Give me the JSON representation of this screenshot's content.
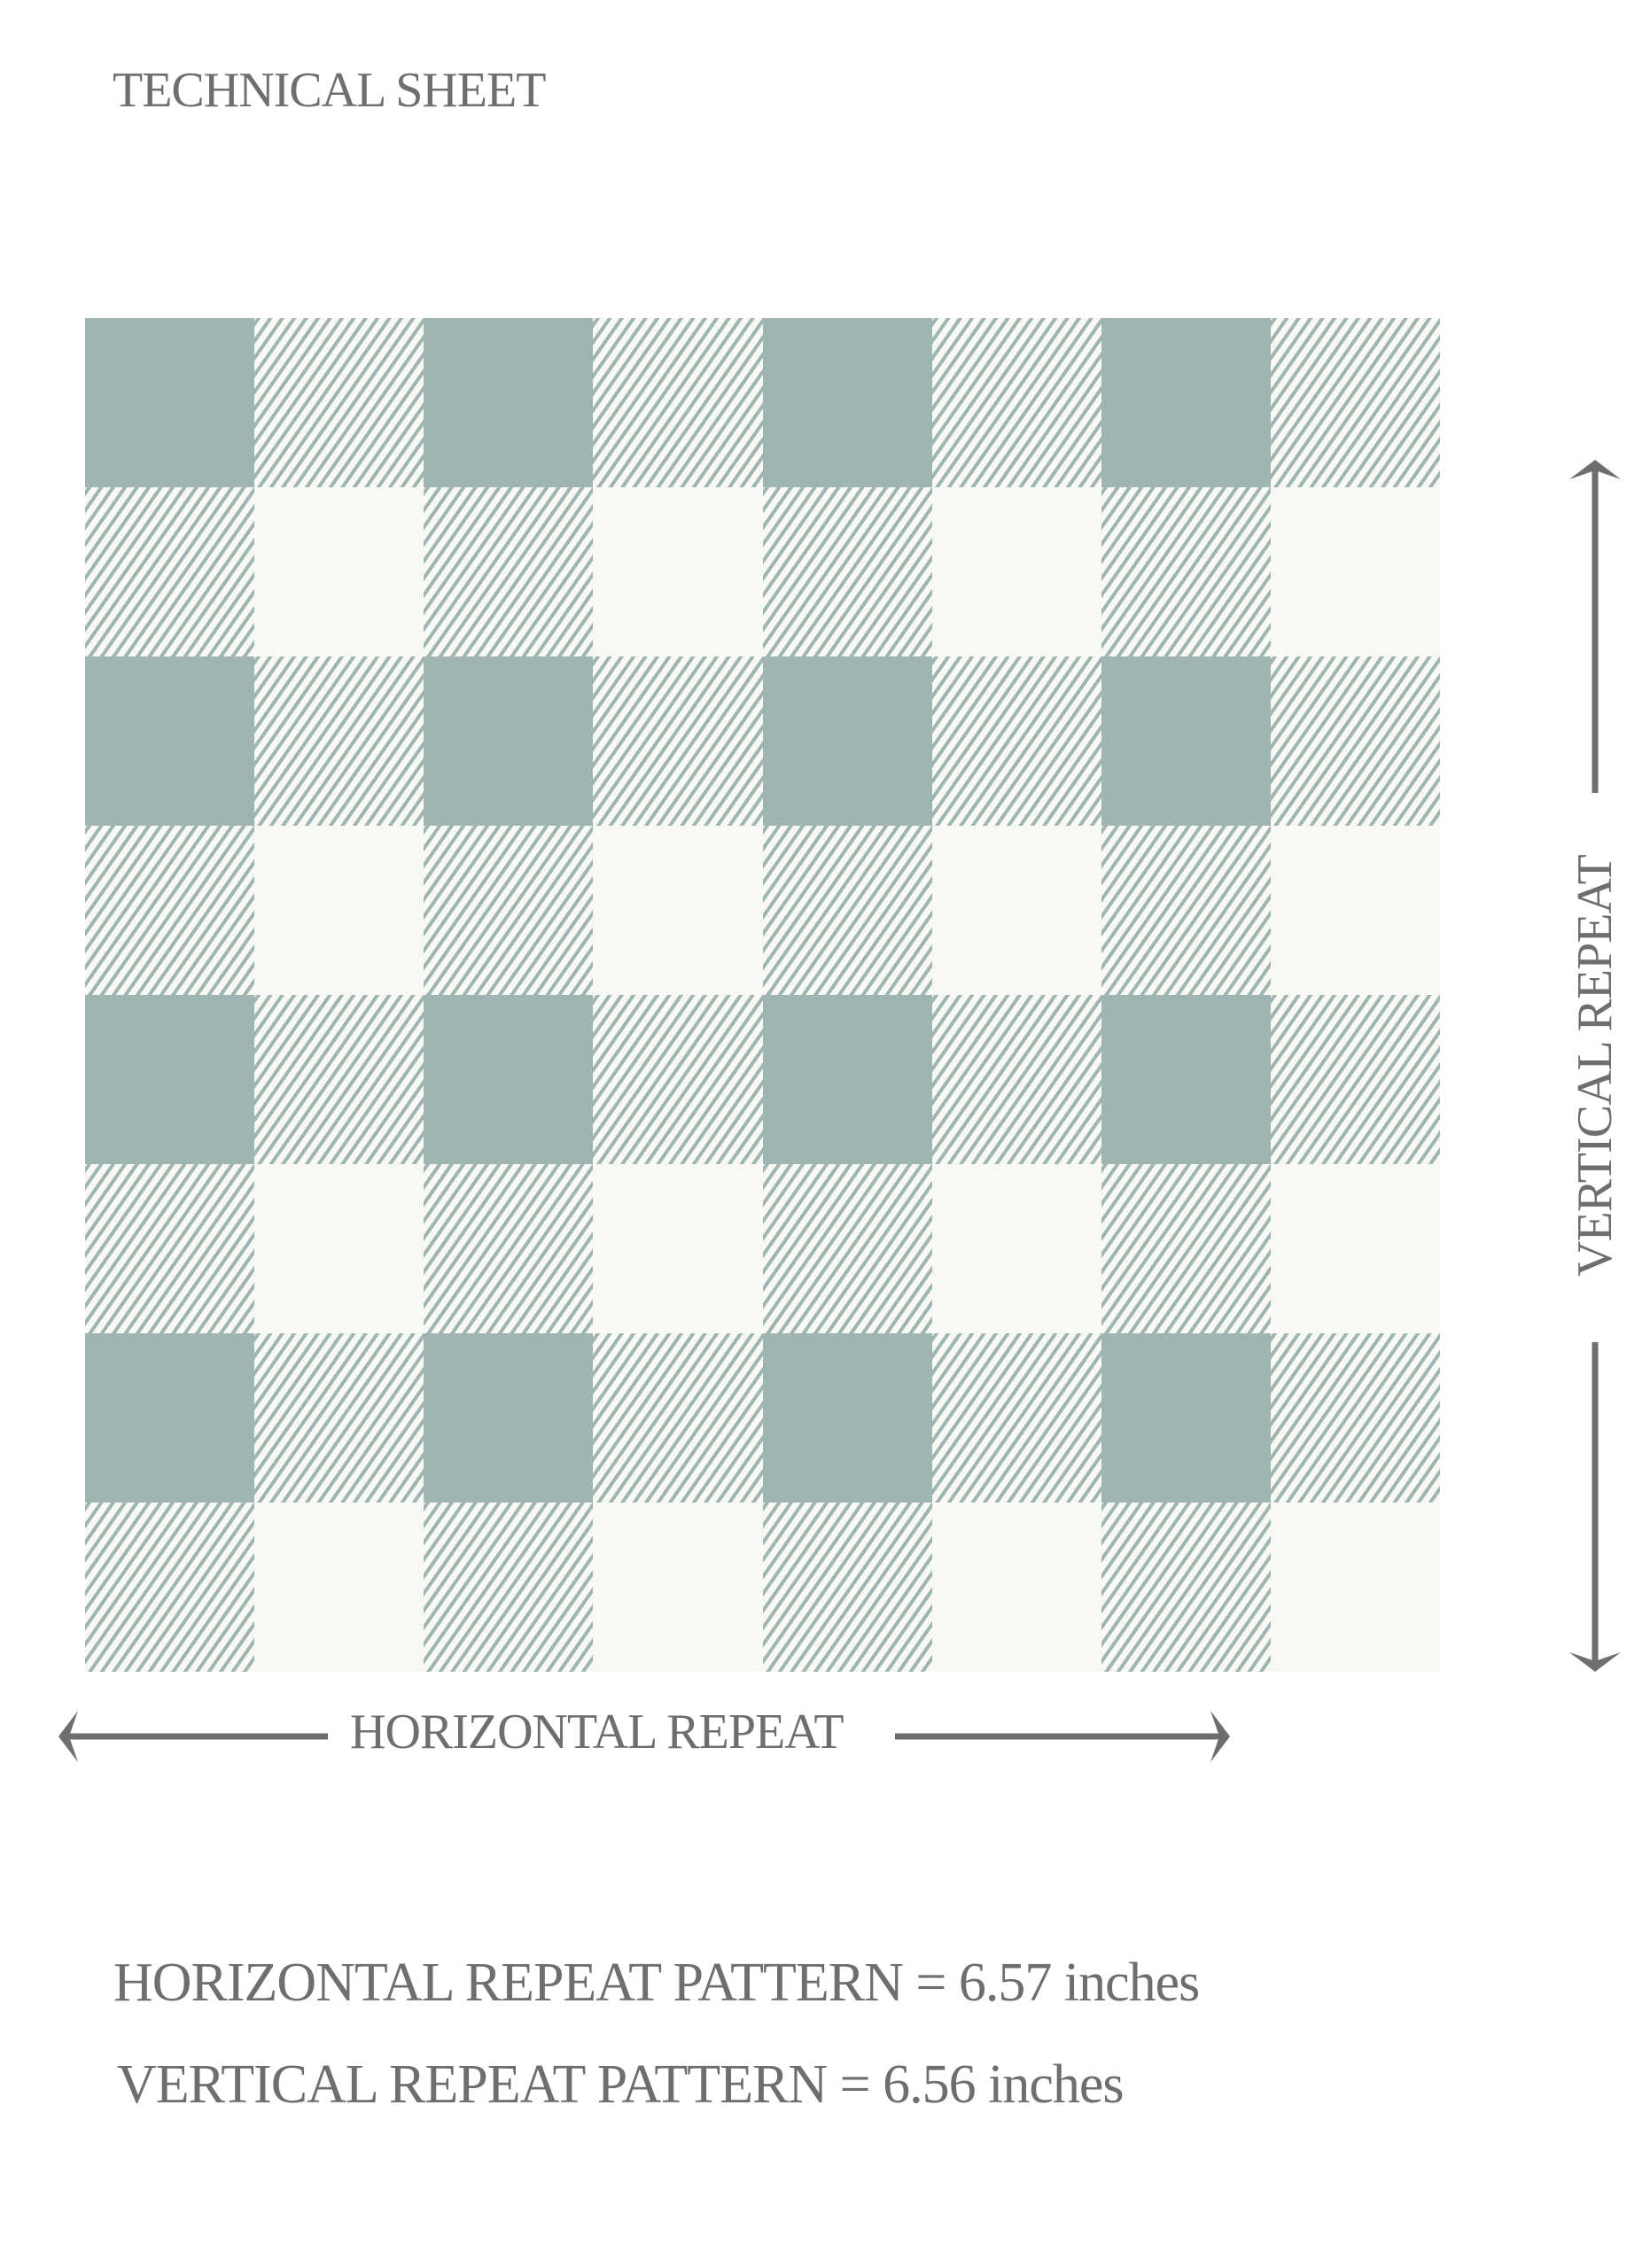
{
  "title": "TECHNICAL SHEET",
  "pattern": {
    "rows": 8,
    "columns": 8,
    "colors": {
      "teal": "#9fb5b2",
      "cream": "#f8f8f5",
      "text": "#6e6e6e"
    }
  },
  "horizontal_label": "HORIZONTAL REPEAT",
  "vertical_label": "VERTICAL REPEAT",
  "specs": {
    "horizontal": "HORIZONTAL REPEAT PATTERN = 6.57 inches",
    "vertical": "VERTICAL REPEAT PATTERN = 6.56 inches"
  }
}
